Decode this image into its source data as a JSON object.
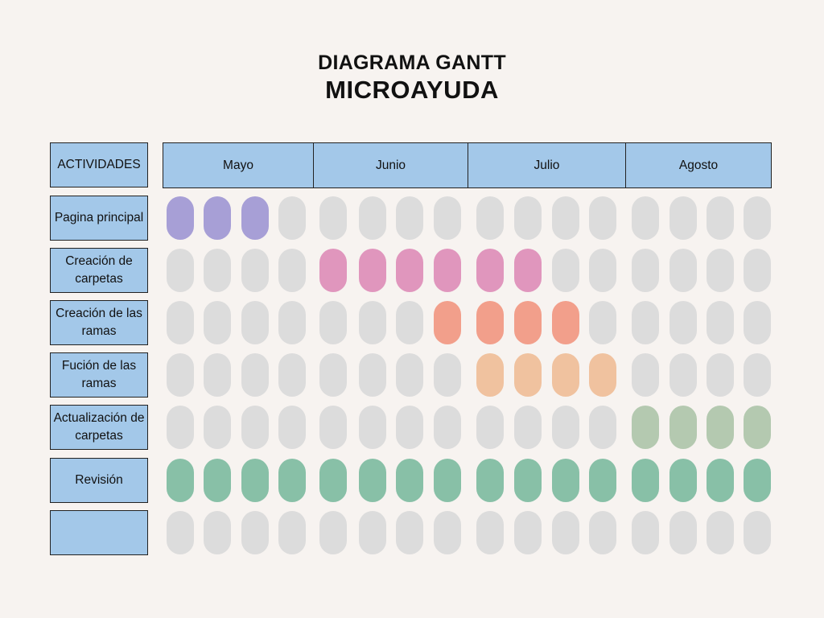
{
  "title": "DIAGRAMA GANTT",
  "subtitle": "MICROAYUDA",
  "activities_header": "ACTIVIDADES",
  "months": [
    "Mayo",
    "Junio",
    "Julio",
    "Agosto"
  ],
  "activities": [
    {
      "label": "Pagina principal",
      "color": "#a79fd6",
      "active_weeks": [
        0,
        1,
        2
      ]
    },
    {
      "label": "Creación de carpetas",
      "color": "#e096bd",
      "active_weeks": [
        4,
        5,
        6,
        7,
        8,
        9
      ]
    },
    {
      "label": "Creación de las ramas",
      "color": "#f29f8b",
      "active_weeks": [
        7,
        8,
        9,
        10
      ]
    },
    {
      "label": "Fución de las ramas",
      "color": "#f0c29f",
      "active_weeks": [
        8,
        9,
        10,
        11
      ]
    },
    {
      "label": "Actualización de carpetas",
      "color": "#b4c9b0",
      "active_weeks": [
        12,
        13,
        14,
        15
      ]
    },
    {
      "label": "Revisión",
      "color": "#88c0a7",
      "active_weeks": [
        0,
        1,
        2,
        3,
        4,
        5,
        6,
        7,
        8,
        9,
        10,
        11,
        12,
        13,
        14,
        15
      ]
    },
    {
      "label": "",
      "color": "#dcdcdc",
      "active_weeks": []
    }
  ],
  "colors": {
    "inactive": "#dcdcdc",
    "header_fill": "#a3c8e9",
    "background": "#f7f3f0"
  }
}
